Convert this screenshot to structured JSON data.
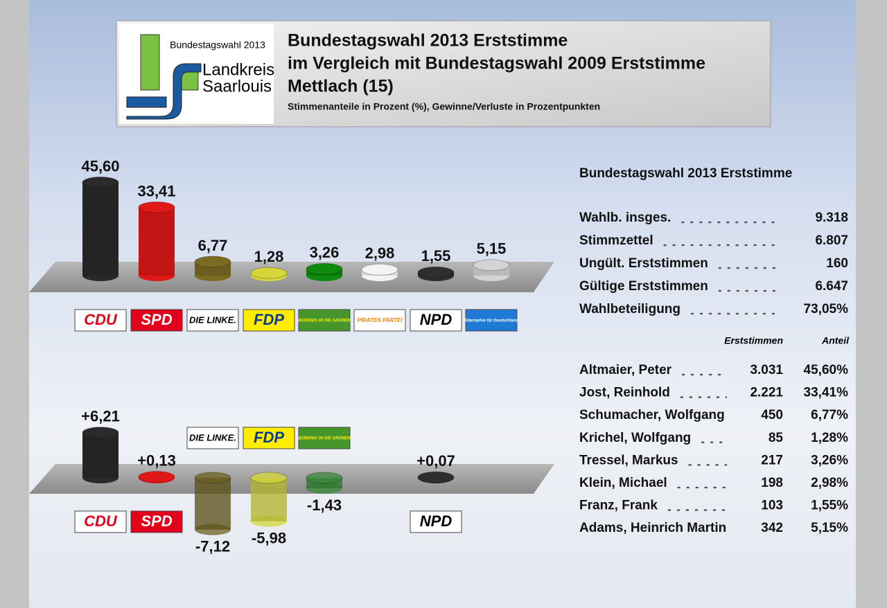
{
  "header": {
    "logo_lines": [
      "Bundestagswahl 2013",
      "Landkreis",
      "Saarlouis"
    ],
    "title_lines": [
      "Bundestagswahl 2013 Erststimme",
      "im Vergleich mit Bundestagswahl 2009 Erststimme",
      "Mettlach (15)"
    ],
    "subtitle": "Stimmenanteile in Prozent (%), Gewinne/Verluste in Prozentpunkten"
  },
  "chart_data": [
    {
      "type": "bar",
      "categories": [
        "CDU",
        "SPD",
        "DIE LINKE.",
        "FDP",
        "BÜNDNIS 90 DIE GRÜNEN",
        "PIRATEN PARTEI",
        "NPD",
        "Alternative für Deutschland"
      ],
      "values": [
        45.6,
        33.41,
        6.77,
        1.28,
        3.26,
        2.98,
        1.55,
        5.15
      ],
      "value_labels": [
        "45,60",
        "33,41",
        "6,77",
        "1,28",
        "3,26",
        "2,98",
        "1,55",
        "5,15"
      ],
      "colors": [
        "#2a2a2a",
        "#e01818",
        "#7a6a22",
        "#d6d63a",
        "#0e8a0e",
        "#f4f4f4",
        "#2e2e2e",
        "#d4d4d4"
      ],
      "label_colors": [
        {
          "background": "#ffffff",
          "text": "#e2001a"
        },
        {
          "background": "#e2001a",
          "text": "#ffffff"
        },
        {
          "background": "#ffffff",
          "text": "#000000"
        },
        {
          "background": "#ffed00",
          "text": "#0a3c8c"
        },
        {
          "background": "#46962b",
          "text": "#ffee00"
        },
        {
          "background": "#ffffff",
          "text": "#f18400"
        },
        {
          "background": "#ffffff",
          "text": "#000000"
        },
        {
          "background": "#1f7ad6",
          "text": "#ffffff"
        }
      ]
    },
    {
      "type": "bar",
      "categories": [
        "CDU",
        "SPD",
        "DIE LINKE.",
        "FDP",
        "BÜNDNIS 90 DIE GRÜNEN",
        "NPD"
      ],
      "values": [
        6.21,
        0.13,
        -7.12,
        -5.98,
        -1.43,
        0.07
      ],
      "value_labels": [
        "+6,21",
        "+0,13",
        "-7,12",
        "-5,98",
        "-1,43",
        "+0,07"
      ],
      "colors": [
        "#2a2a2a",
        "#e01818",
        "#6e6020",
        "#d6d63a",
        "#3a8a3a",
        "#2e2e2e"
      ],
      "label_colors": [
        {
          "background": "#ffffff",
          "text": "#e2001a"
        },
        {
          "background": "#e2001a",
          "text": "#ffffff"
        },
        {
          "background": "#ffffff",
          "text": "#000000"
        },
        {
          "background": "#ffed00",
          "text": "#0a3c8c"
        },
        {
          "background": "#46962b",
          "text": "#ffee00"
        },
        {
          "background": "#ffffff",
          "text": "#000000"
        }
      ]
    }
  ],
  "stats": {
    "title": "Bundestagswahl 2013 Erststimme",
    "rows": [
      [
        "Wahlb. insges.",
        "9.318"
      ],
      [
        "Stimmzettel",
        "6.807"
      ],
      [
        "Ungült. Erststimmen",
        "160"
      ],
      [
        "Gültige Erststimmen",
        "6.647"
      ],
      [
        "Wahlbeteiligung",
        "73,05%"
      ]
    ]
  },
  "candidates": {
    "columns": [
      "Erststimmen",
      "Anteil"
    ],
    "rows": [
      [
        "Altmaier, Peter",
        "3.031",
        "45,60%"
      ],
      [
        "Jost, Reinhold",
        "2.221",
        "33,41%"
      ],
      [
        "Schumacher, Wolfgang",
        "450",
        "6,77%"
      ],
      [
        "Krichel, Wolfgang",
        "85",
        "1,28%"
      ],
      [
        "Tressel, Markus",
        "217",
        "3,26%"
      ],
      [
        "Klein, Michael",
        "198",
        "2,98%"
      ],
      [
        "Franz, Frank",
        "103",
        "1,55%"
      ],
      [
        "Adams, Heinrich Martin",
        "342",
        "5,15%"
      ]
    ]
  }
}
